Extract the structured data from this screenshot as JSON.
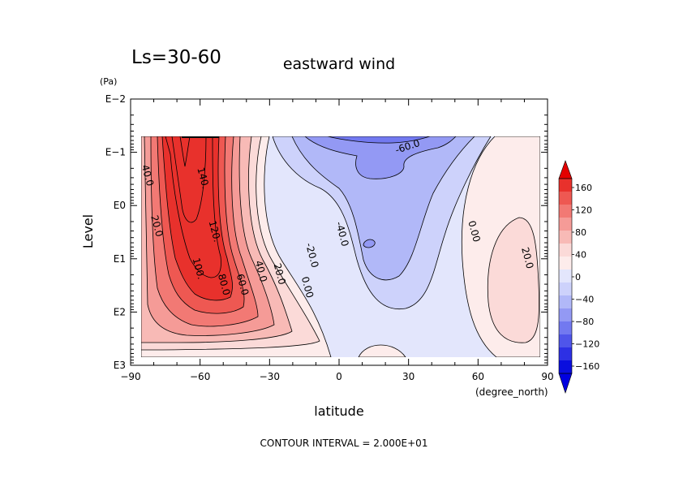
{
  "chart_data": {
    "type": "contour",
    "subtitle": "Ls=30-60",
    "title": "eastward wind",
    "xlabel": "latitude",
    "xunit": "(degree_north)",
    "ylabel": "Level",
    "yunit": "(Pa)",
    "footer": "CONTOUR INTERVAL = 2.000E+01",
    "xlim": [
      -90,
      90
    ],
    "x_ticks": [
      -90,
      -60,
      -30,
      0,
      30,
      60,
      90
    ],
    "x_tick_labels": [
      "−90",
      "−60",
      "−30",
      "0",
      "30",
      "60",
      "90"
    ],
    "y_scale": "log",
    "ylim_log10": [
      3,
      -2
    ],
    "y_ticks_log10": [
      -2,
      -1,
      0,
      1,
      2,
      3
    ],
    "y_tick_labels": [
      "E−2",
      "E−1",
      "E0",
      "E1",
      "E2",
      "E3"
    ],
    "contour_interval": 20,
    "contour_labels": [
      {
        "text": "40.0",
        "lat": -84,
        "log10p": -0.55
      },
      {
        "text": "20.0",
        "lat": -80,
        "log10p": 0.4
      },
      {
        "text": "140.",
        "lat": -60,
        "log10p": -0.5
      },
      {
        "text": "120.",
        "lat": -55,
        "log10p": 0.5
      },
      {
        "text": "100.",
        "lat": -62,
        "log10p": 1.2
      },
      {
        "text": "80.0",
        "lat": -51,
        "log10p": 1.5
      },
      {
        "text": "60.0",
        "lat": -43,
        "log10p": 1.5
      },
      {
        "text": "40.0",
        "lat": -35,
        "log10p": 1.25
      },
      {
        "text": "20.0",
        "lat": -27,
        "log10p": 1.3
      },
      {
        "text": "0.00",
        "lat": -15,
        "log10p": 1.55
      },
      {
        "text": "-20.0",
        "lat": -13,
        "log10p": 0.95
      },
      {
        "text": "-40.0",
        "lat": 0,
        "log10p": 0.55
      },
      {
        "text": "-60.0",
        "lat": 30,
        "log10p": -1.05
      },
      {
        "text": "0.00",
        "lat": 57,
        "log10p": 0.5
      },
      {
        "text": "20.0",
        "lat": 80,
        "log10p": 1.0
      }
    ],
    "colorbar": {
      "ticks": [
        160,
        120,
        80,
        40,
        0,
        -40,
        -80,
        -120,
        -160
      ],
      "tick_labels": [
        "160",
        "120",
        "80",
        "40",
        "0",
        "−40",
        "−80",
        "−120",
        "−160"
      ],
      "colors": [
        "#e8312c",
        "#ee5852",
        "#f27974",
        "#f59b97",
        "#f8bab6",
        "#fbdad8",
        "#fdeceb",
        "#e3e6fc",
        "#cdd2fb",
        "#b1b8f8",
        "#9399f4",
        "#7279f0",
        "#4f55ea",
        "#2d30e4",
        "#0a0ede"
      ]
    }
  }
}
